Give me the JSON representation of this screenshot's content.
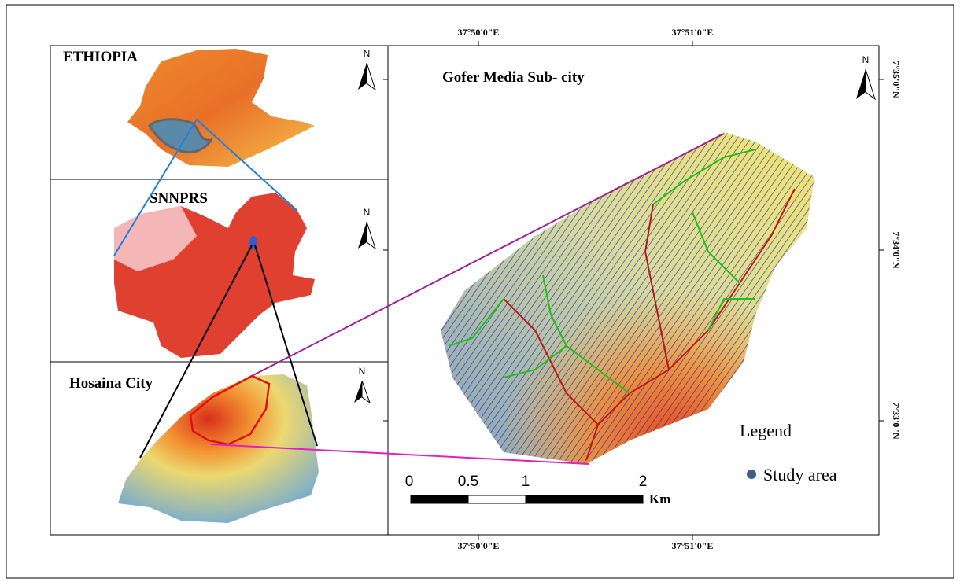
{
  "inset_titles": [
    "ETHIOPIA",
    "SNNPRS",
    "Hosaina City"
  ],
  "north_labels": [
    "N",
    "N",
    "N",
    "N"
  ],
  "main_title": "Gofer Media Sub- city",
  "top_longitudes": [
    "37°50'0\"E",
    "37°51'0\"E"
  ],
  "bottom_longitudes": [
    "37°50'0\"E",
    "37°51'0\"E"
  ],
  "latitudes": [
    "7°35'0\"N",
    "7°34'0\"N",
    "7°33'0\"N"
  ],
  "scale": {
    "labels": [
      "0",
      "0.5",
      "1",
      "2"
    ],
    "unit": "Km"
  },
  "legend": {
    "title": "Legend",
    "items": [
      "Study area"
    ]
  }
}
